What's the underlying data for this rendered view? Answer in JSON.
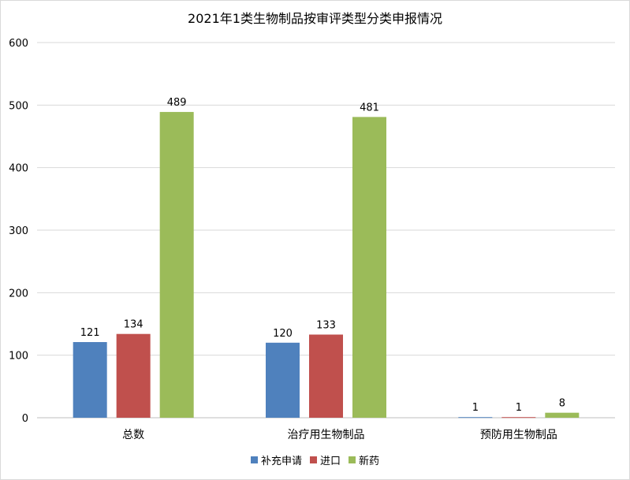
{
  "chart_data": {
    "type": "bar",
    "title": "2021年1类生物制品按审评类型分类申报情况",
    "categories": [
      "总数",
      "治疗用生物制品",
      "预防用生物制品"
    ],
    "series": [
      {
        "name": "补充申请",
        "color": "#4f81bd",
        "values": [
          121,
          120,
          1
        ]
      },
      {
        "name": "进口",
        "color": "#c0504d",
        "values": [
          134,
          133,
          1
        ]
      },
      {
        "name": "新药",
        "color": "#9bbb59",
        "values": [
          489,
          481,
          8
        ]
      }
    ],
    "ylim": [
      0,
      600
    ],
    "yticks": [
      0,
      100,
      200,
      300,
      400,
      500,
      600
    ],
    "grid": true,
    "legend": "bottom",
    "xlabel": "",
    "ylabel": ""
  }
}
